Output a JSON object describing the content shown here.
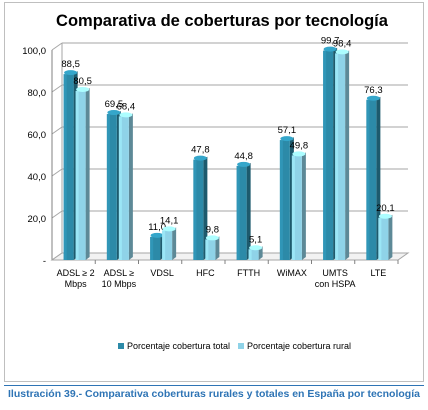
{
  "caption": "Ilustración 39.- Comparativa coberturas rurales y totales en España por tecnología",
  "colors": {
    "series_total": "#2c8aa8",
    "series_rural": "#8fd3e8"
  },
  "chart_data": {
    "type": "bar",
    "title": "Comparativa de coberturas por tecnología",
    "xlabel": "",
    "ylabel": "",
    "ylim": [
      0,
      100
    ],
    "yticks": [
      "-",
      "20,0",
      "40,0",
      "60,0",
      "80,0",
      "100,0"
    ],
    "categories": [
      [
        "ADSL ≥ 2",
        "Mbps"
      ],
      [
        "ADSL ≥",
        "10 Mbps"
      ],
      [
        "VDSL"
      ],
      [
        "HFC"
      ],
      [
        "FTTH"
      ],
      [
        "WiMAX"
      ],
      [
        "UMTS",
        "con HSPA"
      ],
      [
        "LTE"
      ]
    ],
    "series": [
      {
        "name": "Porcentaje cobertura total",
        "values": [
          88.5,
          69.5,
          11.0,
          47.8,
          44.8,
          57.1,
          99.7,
          76.3
        ],
        "labels": [
          "88,5",
          "69,5",
          "11,0",
          "47,8",
          "44,8",
          "57,1",
          "99,7",
          "76,3"
        ]
      },
      {
        "name": "Porcentaje cobertura rural",
        "values": [
          80.5,
          68.4,
          14.1,
          9.8,
          5.1,
          49.8,
          98.4,
          20.1
        ],
        "labels": [
          "80,5",
          "68,4",
          "14,1",
          "9,8",
          "5,1",
          "49,8",
          "98,4",
          "20,1"
        ]
      }
    ],
    "legend_position": "bottom",
    "grid": true
  }
}
